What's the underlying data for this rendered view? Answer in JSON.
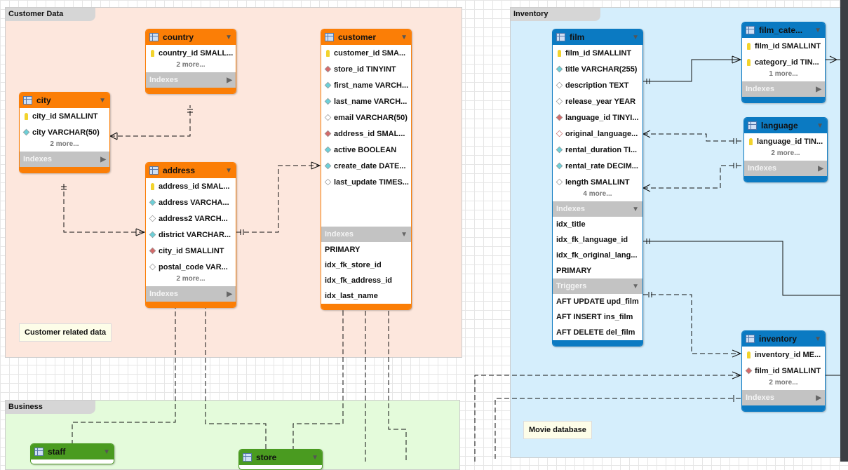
{
  "colors": {
    "customer_region": "#fde7dd",
    "inventory_region": "#d5eefc",
    "business_region": "#e4fbdb",
    "orange": "#fb7e06",
    "blue": "#0b7ac2",
    "green": "#4a9b20"
  },
  "regions": [
    {
      "title": "Customer Data"
    },
    {
      "title": "Inventory"
    },
    {
      "title": "Business"
    }
  ],
  "notes": [
    "Customer related data",
    "Movie database"
  ],
  "tables": [
    {
      "name": "country",
      "color": "orange",
      "fields": [
        [
          "key",
          "country_id SMALL..."
        ]
      ],
      "more": "2 more...",
      "sections": [
        {
          "title": "Indexes",
          "open": false,
          "items": []
        }
      ]
    },
    {
      "name": "city",
      "color": "orange",
      "fields": [
        [
          "key",
          "city_id SMALLINT"
        ],
        [
          "teal",
          "city VARCHAR(50)"
        ]
      ],
      "more": "2 more...",
      "sections": [
        {
          "title": "Indexes",
          "open": false,
          "items": []
        }
      ]
    },
    {
      "name": "address",
      "color": "orange",
      "fields": [
        [
          "key",
          "address_id SMAL..."
        ],
        [
          "teal",
          "address VARCHA..."
        ],
        [
          "white",
          "address2 VARCH..."
        ],
        [
          "teal",
          "district VARCHAR..."
        ],
        [
          "red",
          "city_id SMALLINT"
        ],
        [
          "white",
          "postal_code VAR..."
        ]
      ],
      "more": "2 more...",
      "sections": [
        {
          "title": "Indexes",
          "open": false,
          "items": []
        }
      ]
    },
    {
      "name": "customer",
      "color": "orange",
      "fields": [
        [
          "key",
          "customer_id SMA..."
        ],
        [
          "red",
          "store_id TINYINT"
        ],
        [
          "teal",
          "first_name VARCH..."
        ],
        [
          "teal",
          "last_name VARCH..."
        ],
        [
          "white",
          "email VARCHAR(50)"
        ],
        [
          "red",
          "address_id SMAL..."
        ],
        [
          "teal",
          "active BOOLEAN"
        ],
        [
          "teal",
          "create_date DATE..."
        ],
        [
          "white",
          "last_update TIMES..."
        ]
      ],
      "more": "",
      "sections": [
        {
          "title": "Indexes",
          "open": true,
          "items": [
            "PRIMARY",
            "idx_fk_store_id",
            "idx_fk_address_id",
            "idx_last_name"
          ]
        }
      ]
    },
    {
      "name": "film",
      "color": "blue",
      "fields": [
        [
          "key",
          "film_id SMALLINT"
        ],
        [
          "teal",
          "title VARCHAR(255)"
        ],
        [
          "white",
          "description TEXT"
        ],
        [
          "white",
          "release_year YEAR"
        ],
        [
          "red",
          "language_id TINYI..."
        ],
        [
          "redo",
          "original_language..."
        ],
        [
          "teal",
          "rental_duration TI..."
        ],
        [
          "teal",
          "rental_rate DECIM..."
        ],
        [
          "white",
          "length SMALLINT"
        ]
      ],
      "more": "4 more...",
      "sections": [
        {
          "title": "Indexes",
          "open": true,
          "items": [
            "idx_title",
            "idx_fk_language_id",
            "idx_fk_original_lang...",
            "PRIMARY"
          ]
        },
        {
          "title": "Triggers",
          "open": true,
          "items": [
            "AFT UPDATE upd_film",
            "AFT INSERT ins_film",
            "AFT DELETE del_film"
          ]
        }
      ]
    },
    {
      "name": "film_cate...",
      "color": "blue",
      "fields": [
        [
          "key",
          "film_id SMALLINT"
        ],
        [
          "key",
          "category_id TIN..."
        ]
      ],
      "more": "1 more...",
      "sections": [
        {
          "title": "Indexes",
          "open": false,
          "items": []
        }
      ]
    },
    {
      "name": "language",
      "color": "blue",
      "fields": [
        [
          "key",
          "language_id TIN..."
        ]
      ],
      "more": "2 more...",
      "sections": [
        {
          "title": "Indexes",
          "open": false,
          "items": []
        }
      ]
    },
    {
      "name": "inventory",
      "color": "blue",
      "fields": [
        [
          "key",
          "inventory_id ME..."
        ],
        [
          "red",
          "film_id SMALLINT"
        ]
      ],
      "more": "2 more...",
      "sections": [
        {
          "title": "Indexes",
          "open": false,
          "items": []
        }
      ]
    },
    {
      "name": "staff",
      "color": "green",
      "fields": [],
      "more": "",
      "sections": []
    },
    {
      "name": "store",
      "color": "green",
      "fields": [],
      "more": "",
      "sections": []
    }
  ]
}
